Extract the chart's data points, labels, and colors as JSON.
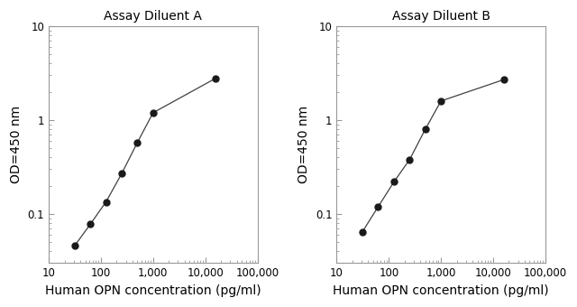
{
  "title_A": "Assay Diluent A",
  "title_B": "Assay Diluent B",
  "xlabel": "Human OPN concentration (pg/ml)",
  "ylabel": "OD=450 nm",
  "xlim": [
    10,
    100000
  ],
  "ylim": [
    0.03,
    10
  ],
  "x_ticks": [
    10,
    100,
    1000,
    10000,
    100000
  ],
  "x_tick_labels": [
    "10",
    "100",
    "1,000",
    "10,000",
    "100,000"
  ],
  "y_ticks": [
    0.1,
    1,
    10
  ],
  "y_tick_labels": [
    "0.1",
    "1",
    "10"
  ],
  "data_A_x": [
    31.25,
    62.5,
    125,
    250,
    500,
    1000,
    16000
  ],
  "data_A_y": [
    0.046,
    0.078,
    0.135,
    0.27,
    0.58,
    1.2,
    2.8
  ],
  "data_B_x": [
    31.25,
    62.5,
    125,
    250,
    500,
    1000,
    16000
  ],
  "data_B_y": [
    0.065,
    0.12,
    0.22,
    0.38,
    0.8,
    1.6,
    2.7
  ],
  "line_color": "#404040",
  "marker_color": "#1a1a1a",
  "marker_size": 5,
  "bg_color": "#ffffff",
  "font_size_title": 10,
  "font_size_label": 10,
  "font_size_tick": 8.5
}
